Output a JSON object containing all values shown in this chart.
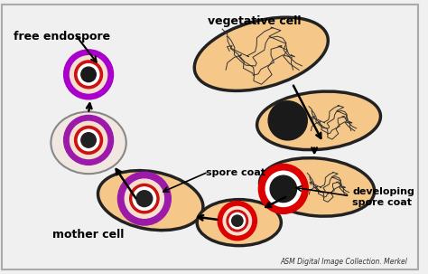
{
  "title": "",
  "background_color": "#ffffff",
  "border_color": "#aaaaaa",
  "fig_width": 4.74,
  "fig_height": 3.03,
  "labels": {
    "free_endospore": "free endospore",
    "vegetative_cell": "vegetative cell",
    "spore_coat": "spore coat",
    "mother_cell": "mother cell",
    "developing_spore_coat": "developing\nspore coat",
    "asm_credit": "ASM Digital Image Collection. Merkel"
  },
  "colors": {
    "cell_fill": "#f5c88a",
    "cell_border": "#222222",
    "spore_outer_purple": "#9b1aaa",
    "spore_mid_red": "#cc1111",
    "spore_inner_dark": "#222222",
    "spore_white_ring": "#ffffff",
    "free_spore_outer": "#aa00cc",
    "free_spore_mid": "#cc0022",
    "nucleus_fill": "#1a1a1a",
    "arrow_color": "#222222",
    "text_color": "#000000",
    "background": "#f0f0f0"
  }
}
